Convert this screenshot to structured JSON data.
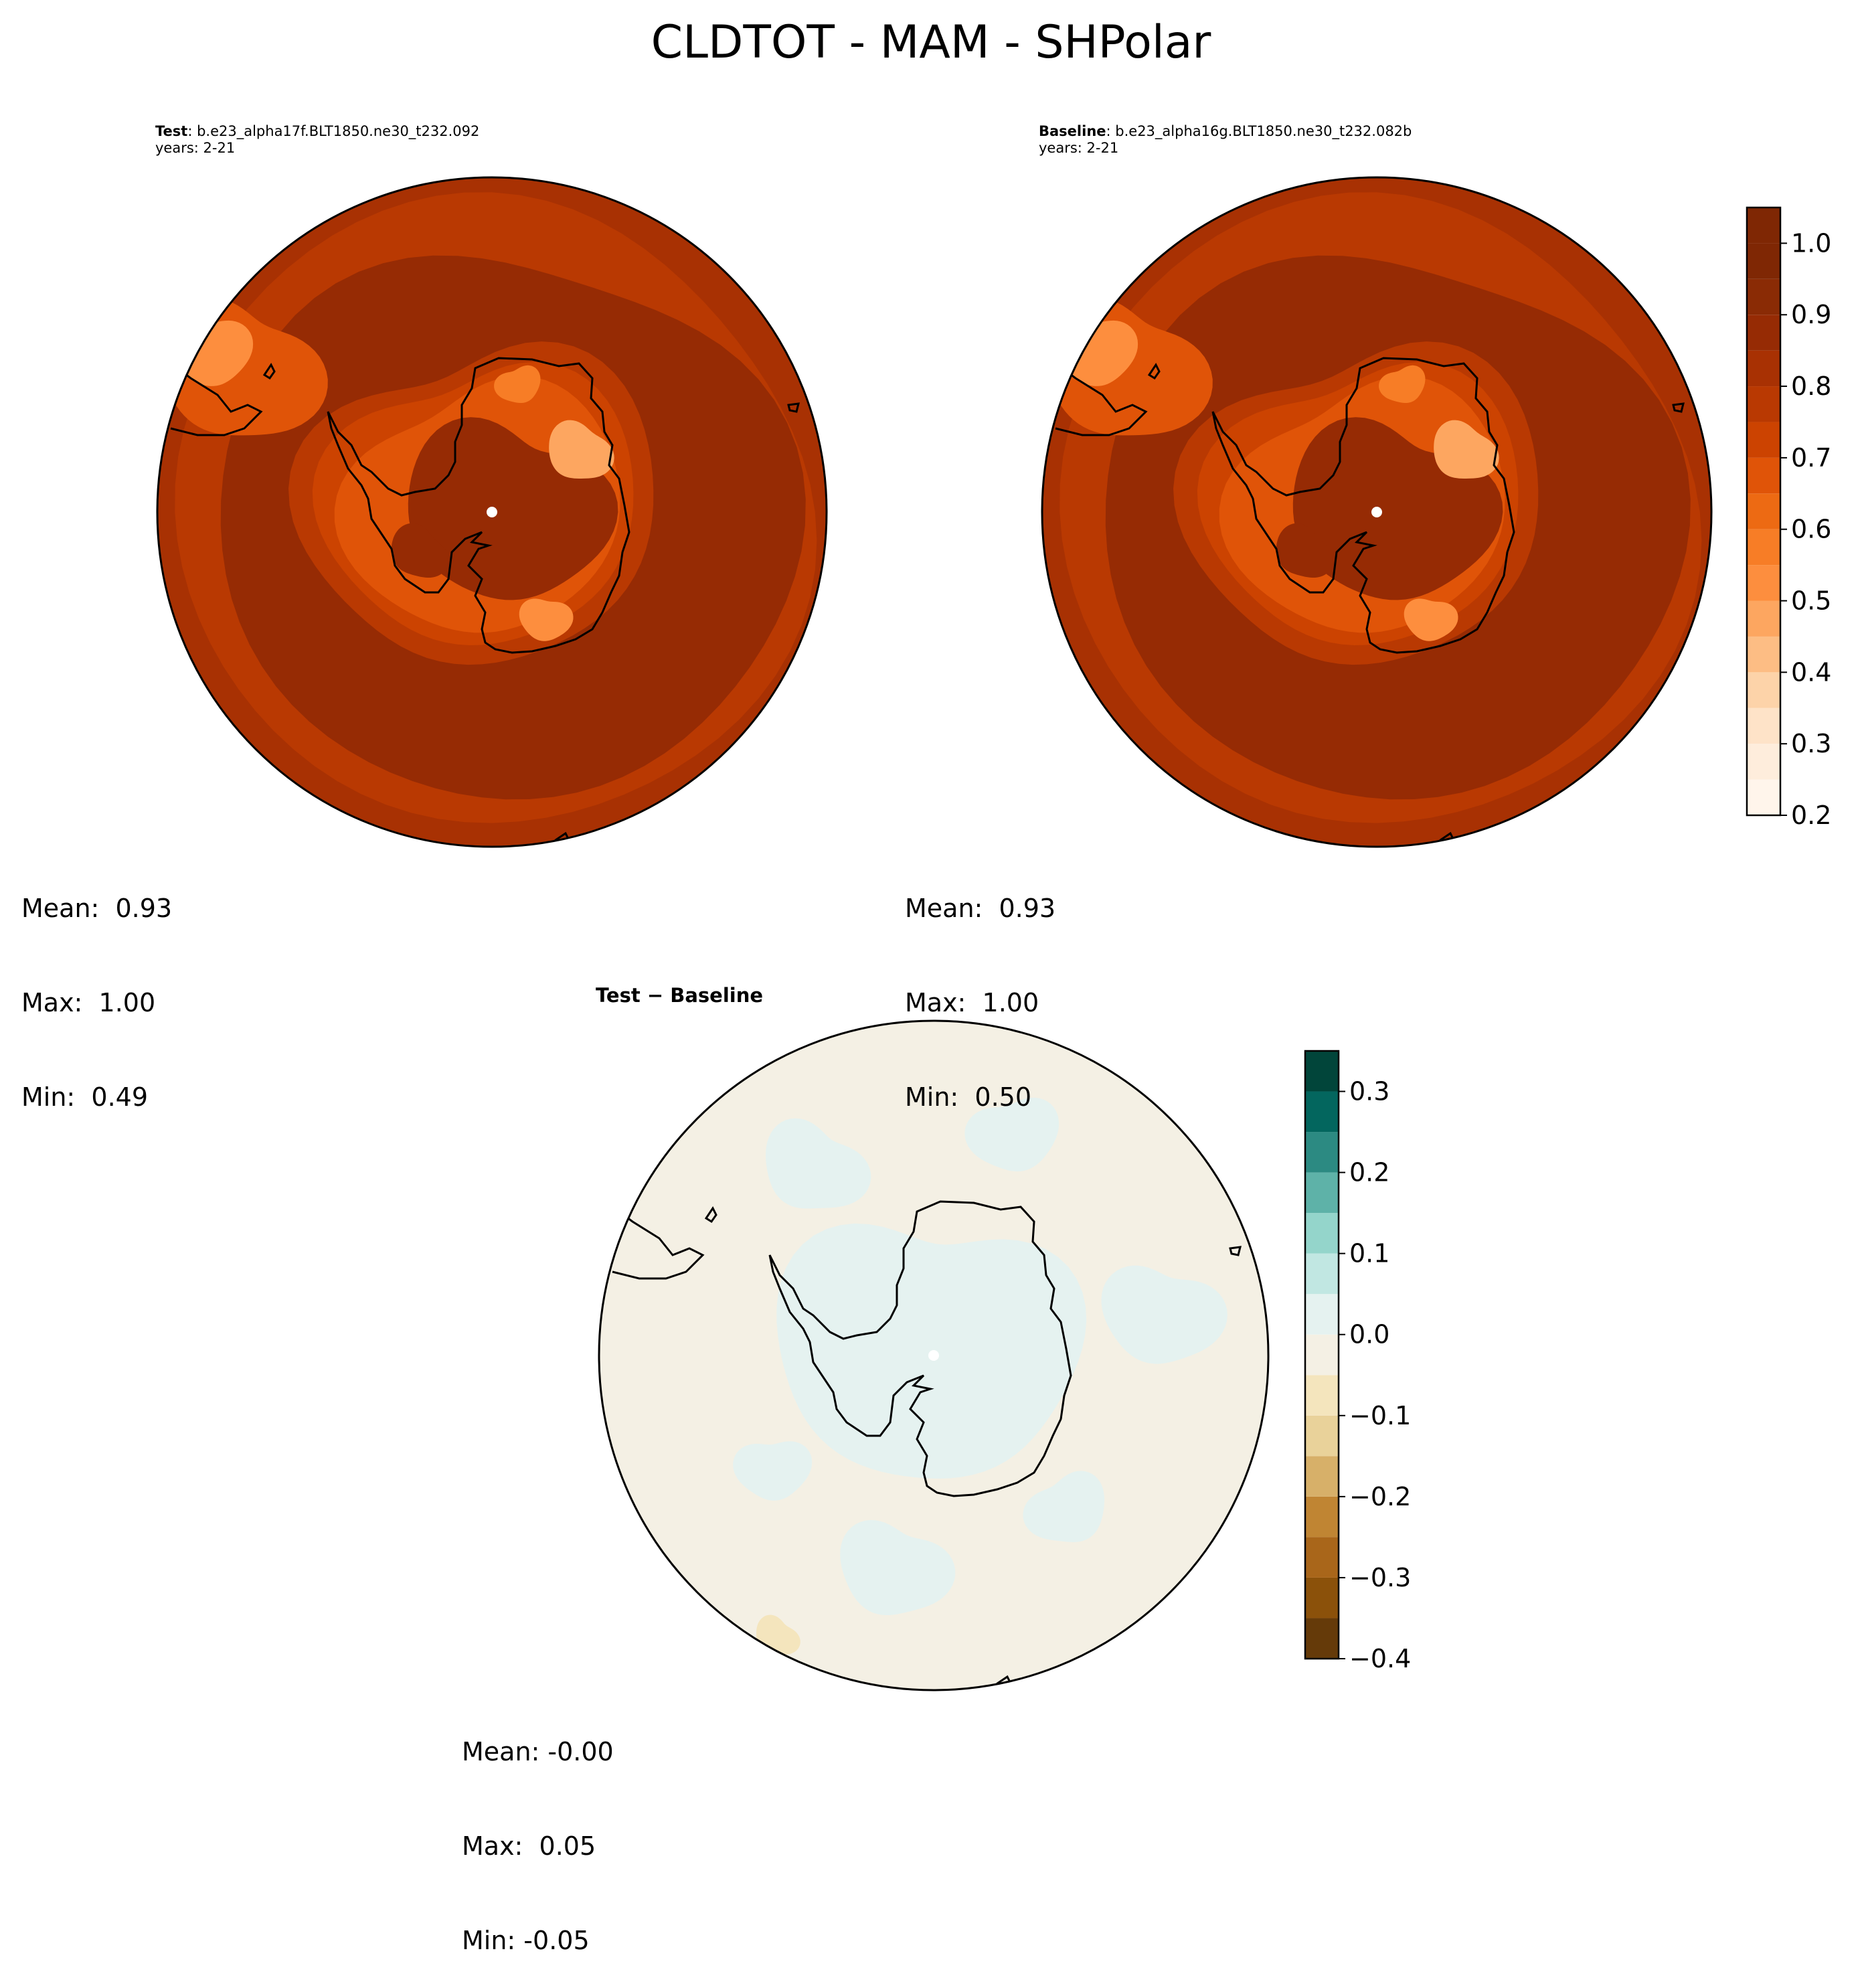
{
  "title": "CLDTOT - MAM - SHPolar",
  "panels": [
    {
      "label": "Test",
      "case": ": b.e23_alpha17f.BLT1850.ne30_t232.092",
      "years": "years: 2-21",
      "stats": [
        "Mean:  0.93",
        "Max:  1.00",
        "Min:  0.49"
      ],
      "colormap": "Oranges"
    },
    {
      "label": "Baseline",
      "case": ": b.e23_alpha16g.BLT1850.ne30_t232.082b",
      "years": "years: 2-21",
      "stats": [
        "Mean:  0.93",
        "Max:  1.00",
        "Min:  0.50"
      ],
      "colormap": "Oranges"
    },
    {
      "label": "Test − Baseline",
      "stats": [
        "Mean: -0.00",
        "Max:  0.05",
        "Min: -0.05"
      ],
      "colormap": "BrBG"
    }
  ],
  "colorbars": [
    {
      "name": "absolute",
      "ticks": [
        "0.2",
        "0.3",
        "0.4",
        "0.5",
        "0.6",
        "0.7",
        "0.8",
        "0.9",
        "1.0"
      ],
      "levels": [
        0.2,
        0.25,
        0.3,
        0.35,
        0.4,
        0.45,
        0.5,
        0.55,
        0.6,
        0.65,
        0.7,
        0.75,
        0.8,
        0.85,
        0.9,
        0.95,
        1.0,
        1.05
      ],
      "colors": [
        "#fff5eb",
        "#feeddc",
        "#fee3c8",
        "#fdd3a9",
        "#fdbd84",
        "#fda660",
        "#fd8e3e",
        "#f77d26",
        "#ed6a13",
        "#e05408",
        "#cc4301",
        "#b93902",
        "#a83103",
        "#962b04",
        "#8a2b05",
        "#7f2704",
        "#7f2704"
      ]
    },
    {
      "name": "difference",
      "ticks": [
        "−0.4",
        "−0.3",
        "−0.2",
        "−0.1",
        "0.0",
        "0.1",
        "0.2",
        "0.3"
      ],
      "levels": [
        -0.4,
        -0.35,
        -0.3,
        -0.25,
        -0.2,
        -0.15,
        -0.1,
        -0.05,
        0.0,
        0.05,
        0.1,
        0.15,
        0.2,
        0.25,
        0.3,
        0.35
      ],
      "colors": [
        "#653a09",
        "#8b510a",
        "#a9661a",
        "#c08533",
        "#d7b069",
        "#e9d29a",
        "#f4e5bd",
        "#f4f0e4",
        "#e5f2f0",
        "#c1e7e2",
        "#94d5cb",
        "#5eb2a8",
        "#2c8a82",
        "#03665e",
        "#01453a"
      ]
    }
  ]
}
